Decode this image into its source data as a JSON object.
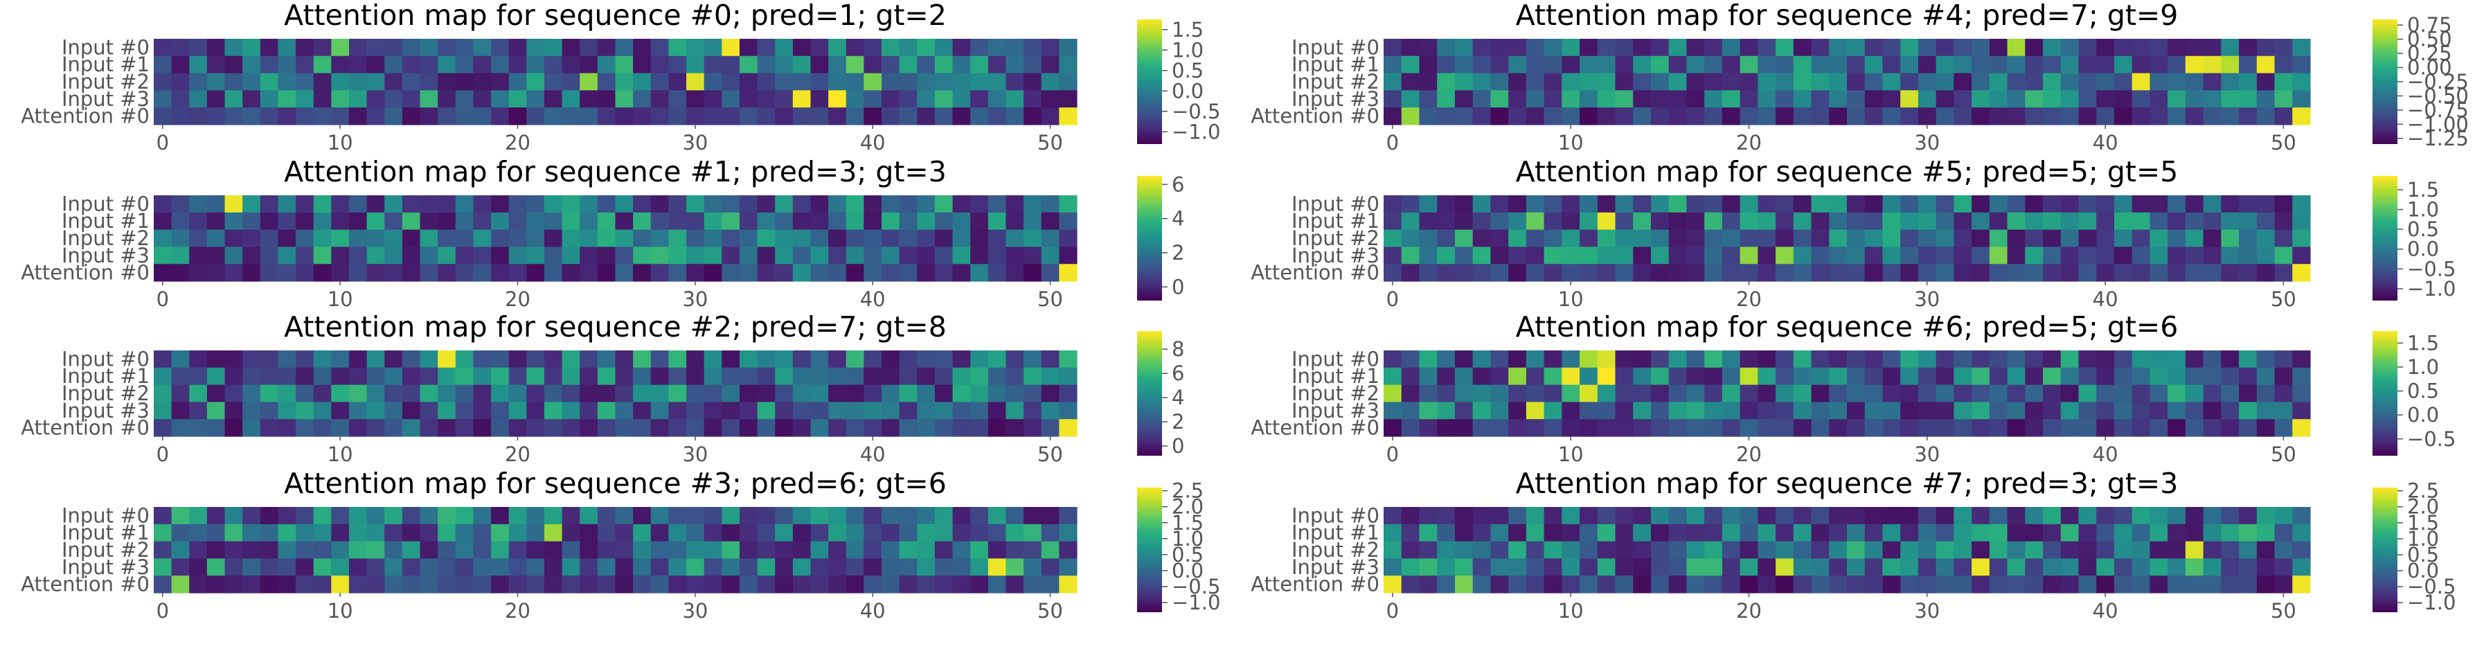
{
  "chart_data": {
    "type": "heatmap",
    "colormap": "viridis",
    "grid": false,
    "n_columns": 52,
    "row_labels": [
      "Input #0",
      "Input #1",
      "Input #2",
      "Input #3",
      "Attention #0"
    ],
    "x_ticks": [
      0,
      10,
      20,
      30,
      40,
      50
    ],
    "panels": [
      {
        "title": "Attention map for sequence #0; pred=1; gt=2",
        "vmin": -1.3,
        "vmax": 1.75,
        "colorbar_ticks": [
          "1.5",
          "1.0",
          "0.5",
          "0.0",
          "−0.5",
          "−1.0"
        ],
        "colorbar_values": [
          1.5,
          1.0,
          0.5,
          0.0,
          -0.5,
          -1.0
        ],
        "seed": 11,
        "highlights": [
          [
            0,
            32,
            1.7
          ],
          [
            2,
            30,
            1.6
          ],
          [
            3,
            36,
            1.7
          ],
          [
            3,
            38,
            1.75
          ],
          [
            4,
            51,
            1.7
          ],
          [
            2,
            24,
            1.2
          ],
          [
            1,
            39,
            1.0
          ],
          [
            0,
            10,
            1.0
          ],
          [
            2,
            40,
            1.1
          ]
        ]
      },
      {
        "title": "Attention map for sequence #1; pred=3; gt=3",
        "vmin": -0.8,
        "vmax": 6.5,
        "colorbar_ticks": [
          "6",
          "4",
          "2",
          "0"
        ],
        "colorbar_values": [
          6,
          4,
          2,
          0
        ],
        "seed": 23,
        "highlights": [
          [
            0,
            4,
            6.3
          ],
          [
            4,
            51,
            6.4
          ],
          [
            4,
            36,
            2.8
          ],
          [
            4,
            46,
            2.4
          ],
          [
            2,
            31,
            2.0
          ]
        ]
      },
      {
        "title": "Attention map for sequence #2; pred=7; gt=8",
        "vmin": -0.8,
        "vmax": 9.5,
        "colorbar_ticks": [
          "8",
          "6",
          "4",
          "2",
          "0"
        ],
        "colorbar_values": [
          8,
          6,
          4,
          2,
          0
        ],
        "seed": 37,
        "highlights": [
          [
            0,
            16,
            9.3
          ],
          [
            4,
            51,
            9.3
          ],
          [
            4,
            14,
            3.5
          ],
          [
            4,
            37,
            3.2
          ],
          [
            4,
            5,
            3.0
          ],
          [
            4,
            43,
            2.8
          ]
        ]
      },
      {
        "title": "Attention map for sequence #3; pred=6; gt=6",
        "vmin": -1.3,
        "vmax": 2.6,
        "colorbar_ticks": [
          "2.5",
          "2.0",
          "1.5",
          "1.0",
          "0.5",
          "0.0",
          "−0.5",
          "−1.0"
        ],
        "colorbar_values": [
          2.5,
          2.0,
          1.5,
          1.0,
          0.5,
          0.0,
          -0.5,
          -1.0
        ],
        "seed": 41,
        "highlights": [
          [
            1,
            22,
            2.0
          ],
          [
            3,
            47,
            2.5
          ],
          [
            4,
            10,
            2.5
          ],
          [
            4,
            51,
            2.5
          ],
          [
            4,
            1,
            1.8
          ],
          [
            3,
            48,
            1.5
          ],
          [
            3,
            9,
            1.2
          ]
        ]
      },
      {
        "title": "Attention map for sequence #4; pred=7; gt=9",
        "vmin": -1.35,
        "vmax": 0.85,
        "colorbar_ticks": [
          "0.75",
          "0.50",
          "0.25",
          "0.00",
          "−0.25",
          "−0.50",
          "−0.75",
          "−1.00",
          "−1.25"
        ],
        "colorbar_values": [
          0.75,
          0.5,
          0.25,
          0.0,
          -0.25,
          -0.5,
          -0.75,
          -1.0,
          -1.25
        ],
        "seed": 53,
        "highlights": [
          [
            1,
            45,
            0.8
          ],
          [
            1,
            46,
            0.75
          ],
          [
            1,
            49,
            0.8
          ],
          [
            2,
            42,
            0.8
          ],
          [
            4,
            51,
            0.8
          ],
          [
            3,
            29,
            0.7
          ],
          [
            1,
            47,
            0.6
          ],
          [
            4,
            1,
            0.5
          ],
          [
            0,
            35,
            0.55
          ]
        ]
      },
      {
        "title": "Attention map for sequence #5; pred=5; gt=5",
        "vmin": -1.3,
        "vmax": 1.85,
        "colorbar_ticks": [
          "1.5",
          "1.0",
          "0.5",
          "0.0",
          "−0.5",
          "−1.0"
        ],
        "colorbar_values": [
          1.5,
          1.0,
          0.5,
          0.0,
          -0.5,
          -1.0
        ],
        "seed": 67,
        "highlights": [
          [
            1,
            12,
            1.75
          ],
          [
            4,
            51,
            1.8
          ],
          [
            3,
            20,
            1.3
          ],
          [
            3,
            22,
            1.3
          ],
          [
            1,
            8,
            1.1
          ],
          [
            3,
            34,
            1.2
          ]
        ]
      },
      {
        "title": "Attention map for sequence #6; pred=5; gt=6",
        "vmin": -0.85,
        "vmax": 1.75,
        "colorbar_ticks": [
          "1.5",
          "1.0",
          "0.5",
          "0.0",
          "−0.5"
        ],
        "colorbar_values": [
          1.5,
          1.0,
          0.5,
          0.0,
          -0.5
        ],
        "seed": 79,
        "highlights": [
          [
            1,
            10,
            1.7
          ],
          [
            1,
            12,
            1.75
          ],
          [
            0,
            12,
            1.6
          ],
          [
            2,
            11,
            1.6
          ],
          [
            3,
            8,
            1.6
          ],
          [
            4,
            51,
            1.7
          ],
          [
            2,
            0,
            1.4
          ],
          [
            1,
            20,
            1.5
          ],
          [
            0,
            11,
            1.4
          ],
          [
            1,
            7,
            1.3
          ]
        ]
      },
      {
        "title": "Attention map for sequence #7; pred=3; gt=3",
        "vmin": -1.3,
        "vmax": 2.6,
        "colorbar_ticks": [
          "2.5",
          "2.0",
          "1.5",
          "1.0",
          "0.5",
          "0.0",
          "−0.5",
          "−1.0"
        ],
        "colorbar_values": [
          2.5,
          2.0,
          1.5,
          1.0,
          0.5,
          0.0,
          -0.5,
          -1.0
        ],
        "seed": 97,
        "highlights": [
          [
            4,
            0,
            2.5
          ],
          [
            3,
            22,
            2.3
          ],
          [
            3,
            33,
            2.5
          ],
          [
            2,
            45,
            2.4
          ],
          [
            4,
            51,
            2.5
          ],
          [
            4,
            4,
            1.8
          ],
          [
            3,
            45,
            1.5
          ]
        ]
      }
    ]
  }
}
